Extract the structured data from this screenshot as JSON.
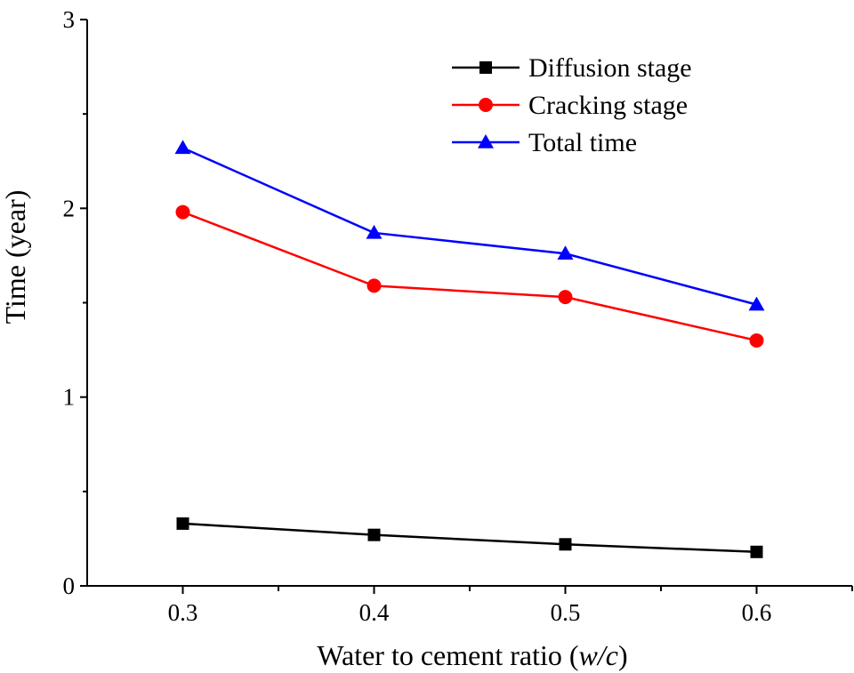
{
  "chart_data": {
    "type": "line",
    "title": "",
    "xlabel": "Water to cement ratio (",
    "xlabel_var": "w/c",
    "xlabel_close": ")",
    "ylabel": "Time (year)",
    "xlim": [
      0.25,
      0.65
    ],
    "ylim": [
      0,
      3
    ],
    "x": [
      0.3,
      0.4,
      0.5,
      0.6
    ],
    "x_ticks": [
      "0.3",
      "0.4",
      "0.5",
      "0.6"
    ],
    "y_ticks": [
      "0",
      "1",
      "2",
      "3"
    ],
    "grid": false,
    "legend_position": "top-right",
    "series": [
      {
        "name": "Diffusion stage",
        "values": [
          0.33,
          0.27,
          0.22,
          0.18
        ],
        "color": "#000000",
        "marker": "square"
      },
      {
        "name": "Cracking stage",
        "values": [
          1.98,
          1.59,
          1.53,
          1.3
        ],
        "color": "#ff0000",
        "marker": "circle"
      },
      {
        "name": "Total time",
        "values": [
          2.32,
          1.87,
          1.76,
          1.49
        ],
        "color": "#0000ff",
        "marker": "triangle"
      }
    ]
  }
}
